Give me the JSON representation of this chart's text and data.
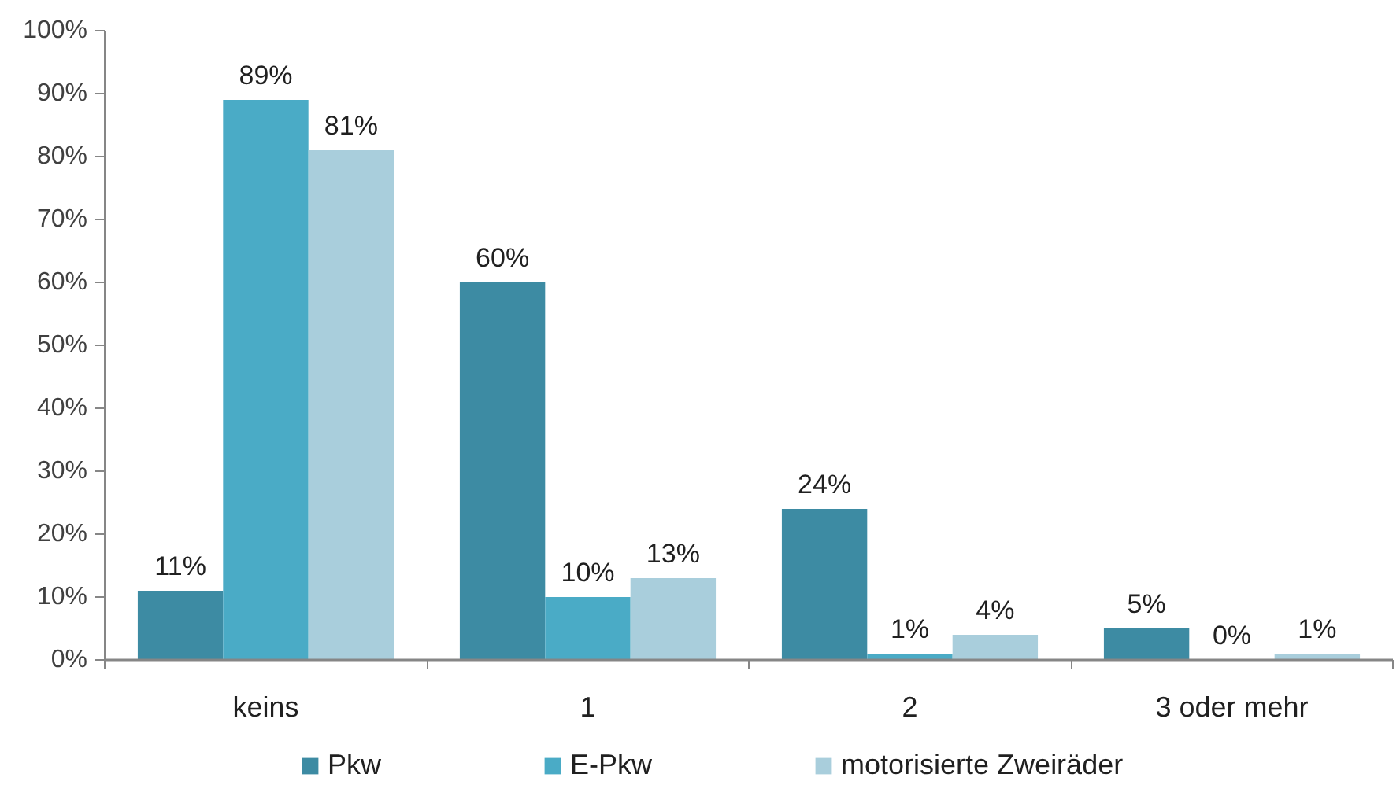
{
  "chart_data": {
    "type": "bar",
    "categories": [
      "keins",
      "1",
      "2",
      "3 oder mehr"
    ],
    "series": [
      {
        "name": "Pkw",
        "color": "#3d8ba3",
        "values": [
          11,
          60,
          24,
          5
        ],
        "value_labels": [
          "11%",
          "60%",
          "24%",
          "5%"
        ]
      },
      {
        "name": "E-Pkw",
        "color": "#4aabc6",
        "values": [
          89,
          10,
          1,
          0
        ],
        "value_labels": [
          "89%",
          "10%",
          "1%",
          "0%"
        ]
      },
      {
        "name": "motorisierte Zweiräder",
        "color": "#a9cedc",
        "values": [
          81,
          13,
          4,
          1
        ],
        "value_labels": [
          "81%",
          "13%",
          "4%",
          "1%"
        ]
      }
    ],
    "ylim": [
      0,
      100
    ],
    "yticks": [
      {
        "value": 0,
        "label": "0%"
      },
      {
        "value": 10,
        "label": "10%"
      },
      {
        "value": 20,
        "label": "20%"
      },
      {
        "value": 30,
        "label": "30%"
      },
      {
        "value": 40,
        "label": "40%"
      },
      {
        "value": 50,
        "label": "50%"
      },
      {
        "value": 60,
        "label": "60%"
      },
      {
        "value": 70,
        "label": "70%"
      },
      {
        "value": 80,
        "label": "80%"
      },
      {
        "value": 90,
        "label": "90%"
      },
      {
        "value": 100,
        "label": "100%"
      }
    ],
    "legend": "bottom"
  }
}
